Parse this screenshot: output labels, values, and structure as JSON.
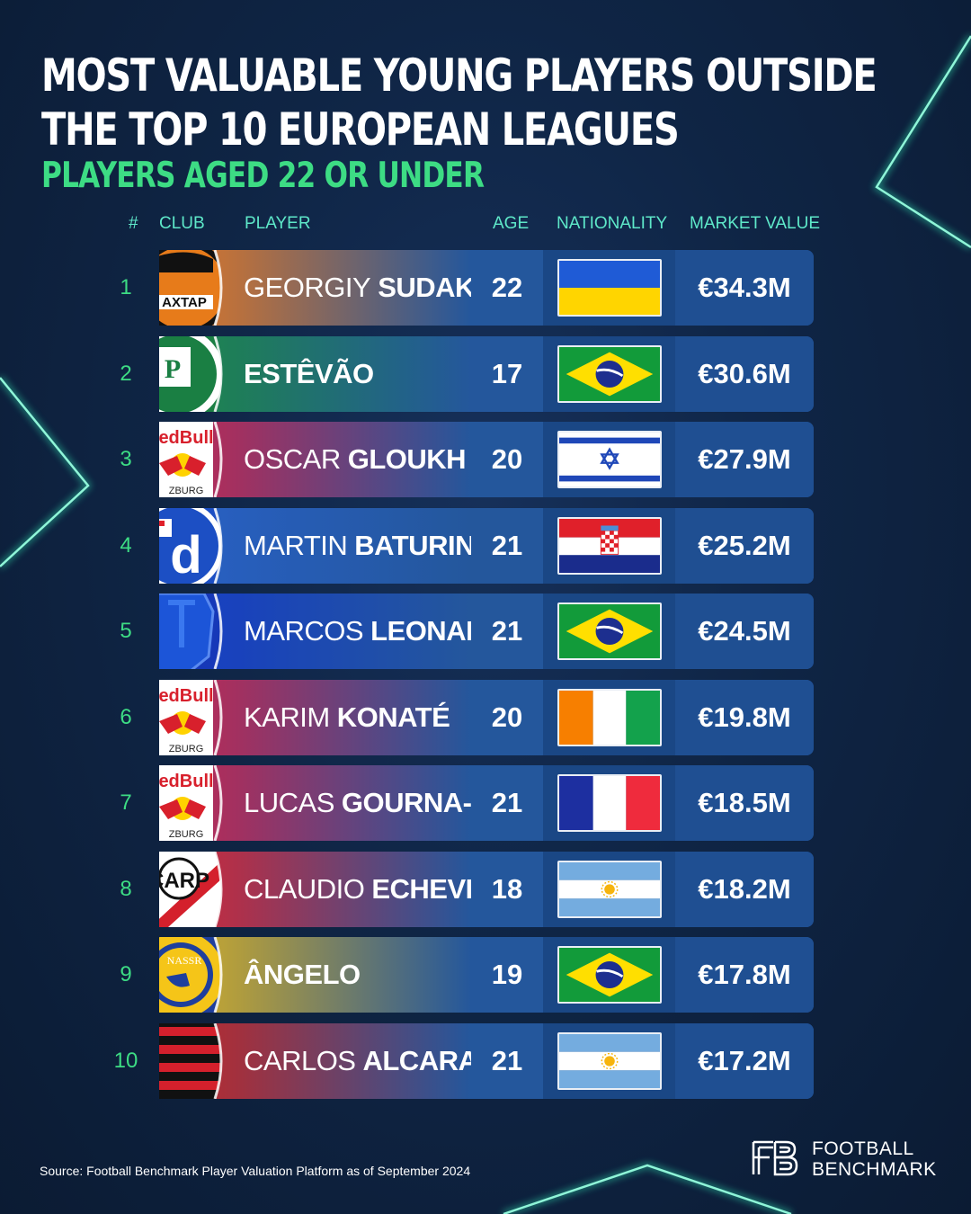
{
  "title_line1": "MOST VALUABLE YOUNG PLAYERS OUTSIDE",
  "title_line2": "THE TOP 10 EUROPEAN LEAGUES",
  "subtitle": "PLAYERS AGED 22 OR UNDER",
  "headers": {
    "rank": "#",
    "club": "CLUB",
    "player": "PLAYER",
    "age": "AGE",
    "nationality": "NATIONALITY",
    "market_value": "MARKET VALUE"
  },
  "colors": {
    "accent_green": "#3ddc84",
    "header_teal": "#5ee8c9",
    "row_blue": "#1c4a8c",
    "background": "#0f2545"
  },
  "chart_data": {
    "type": "table",
    "columns": [
      "#",
      "CLUB",
      "PLAYER",
      "AGE",
      "NATIONALITY",
      "MARKET VALUE"
    ],
    "rows": [
      {
        "rank": "1",
        "club_badge": "shakhtar-donetsk-badge",
        "club_badge_text": "AXTAP",
        "club_color": "#e07a2a",
        "first": "GEORGIY",
        "last": "SUDAKOV",
        "age": "22",
        "flag": "ukraine",
        "value": "€34.3M"
      },
      {
        "rank": "2",
        "club_badge": "palmeiras-badge",
        "club_badge_text": "P",
        "club_color": "#1f8a4c",
        "first": "",
        "last": "ESTÊVÃO",
        "age": "17",
        "flag": "brazil",
        "value": "€30.6M"
      },
      {
        "rank": "3",
        "club_badge": "red-bull-salzburg-badge",
        "club_badge_text": "edBull",
        "club_color": "#c42a55",
        "first": "OSCAR",
        "last": "GLOUKH",
        "age": "20",
        "flag": "israel",
        "value": "€27.9M"
      },
      {
        "rank": "4",
        "club_badge": "dinamo-zagreb-badge",
        "club_badge_text": "d",
        "club_color": "#2a63c8",
        "first": "MARTIN",
        "last": "BATURINA",
        "age": "21",
        "flag": "croatia",
        "value": "€25.2M"
      },
      {
        "rank": "5",
        "club_badge": "porto-badge",
        "club_badge_text": "",
        "club_color": "#1840c8",
        "first": "MARCOS",
        "last": "LEONARDO",
        "age": "21",
        "flag": "brazil",
        "value": "€24.5M"
      },
      {
        "rank": "6",
        "club_badge": "red-bull-salzburg-badge",
        "club_badge_text": "edBull",
        "club_color": "#c42a55",
        "first": "KARIM",
        "last": "KONATÉ",
        "age": "20",
        "flag": "ivory-coast",
        "value": "€19.8M"
      },
      {
        "rank": "7",
        "club_badge": "red-bull-salzburg-badge",
        "club_badge_text": "edBull",
        "club_color": "#c42a55",
        "first": "LUCAS",
        "last": "GOURNA-DOUATH",
        "age": "21",
        "flag": "france",
        "value": "€18.5M"
      },
      {
        "rank": "8",
        "club_badge": "river-plate-badge",
        "club_badge_text": "CARP",
        "club_color": "#d42a3a",
        "first": "CLAUDIO",
        "last": "ECHEVERRI",
        "age": "18",
        "flag": "argentina",
        "value": "€18.2M"
      },
      {
        "rank": "9",
        "club_badge": "al-nassr-badge",
        "club_badge_text": "NASSR",
        "club_color": "#d6b12a",
        "first": "",
        "last": "ÂNGELO",
        "age": "19",
        "flag": "brazil",
        "value": "€17.8M"
      },
      {
        "rank": "10",
        "club_badge": "flamengo-badge",
        "club_badge_text": "",
        "club_color": "#c42a2a",
        "first": "CARLOS",
        "last": "ALCARAZ",
        "age": "21",
        "flag": "argentina",
        "value": "€17.2M"
      }
    ]
  },
  "source": "Source: Football Benchmark Player Valuation Platform as of September 2024",
  "logo": {
    "line1": "FOOTBALL",
    "line2": "BENCHMARK"
  }
}
